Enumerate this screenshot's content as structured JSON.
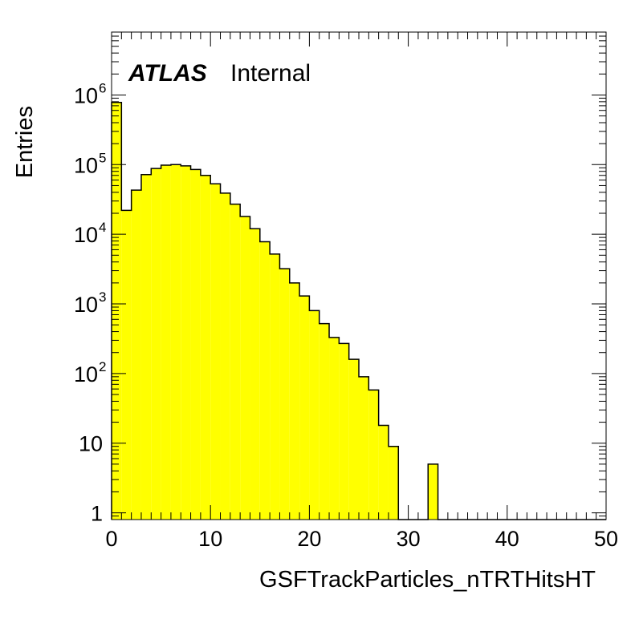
{
  "chart_data": {
    "type": "bar",
    "subtype": "histogram",
    "xlabel": "GSFTrackParticles_nTRTHitsHT",
    "ylabel": "Entries",
    "xlim": [
      0,
      50
    ],
    "yscale": "log",
    "ylim": [
      0.8,
      8000000
    ],
    "bin_width": 1,
    "bin_low_edges": [
      0,
      1,
      2,
      3,
      4,
      5,
      6,
      7,
      8,
      9,
      10,
      11,
      12,
      13,
      14,
      15,
      16,
      17,
      18,
      19,
      20,
      21,
      22,
      23,
      24,
      25,
      26,
      27,
      28,
      29,
      30,
      31,
      32,
      33,
      34,
      35,
      36,
      37,
      38,
      39,
      40,
      41,
      42,
      43,
      44,
      45,
      46,
      47,
      48,
      49
    ],
    "values": [
      780000,
      22000,
      43000,
      72000,
      88000,
      98000,
      100000,
      96000,
      85000,
      70000,
      53000,
      39000,
      27000,
      18000,
      12000,
      7800,
      5200,
      3200,
      2000,
      1300,
      800,
      520,
      330,
      270,
      160,
      90,
      58,
      18,
      9,
      0,
      0,
      0,
      5,
      0,
      0,
      0,
      0,
      0,
      0,
      0,
      0,
      0,
      0,
      0,
      0,
      0,
      0,
      0,
      0,
      0
    ],
    "fill_color": "#ffff00",
    "line_color": "#000000",
    "x_ticks": [
      "0",
      "10",
      "20",
      "30",
      "40",
      "50"
    ],
    "y_ticks": [
      {
        "base": "1",
        "exp": ""
      },
      {
        "base": "10",
        "exp": ""
      },
      {
        "base": "10",
        "exp": "2"
      },
      {
        "base": "10",
        "exp": "3"
      },
      {
        "base": "10",
        "exp": "4"
      },
      {
        "base": "10",
        "exp": "5"
      },
      {
        "base": "10",
        "exp": "6"
      }
    ],
    "y_tick_values": [
      1,
      10,
      100,
      1000,
      10000,
      100000,
      1000000
    ],
    "grid": false,
    "legend": "none"
  },
  "label": {
    "experiment": "ATLAS",
    "status": "Internal"
  }
}
